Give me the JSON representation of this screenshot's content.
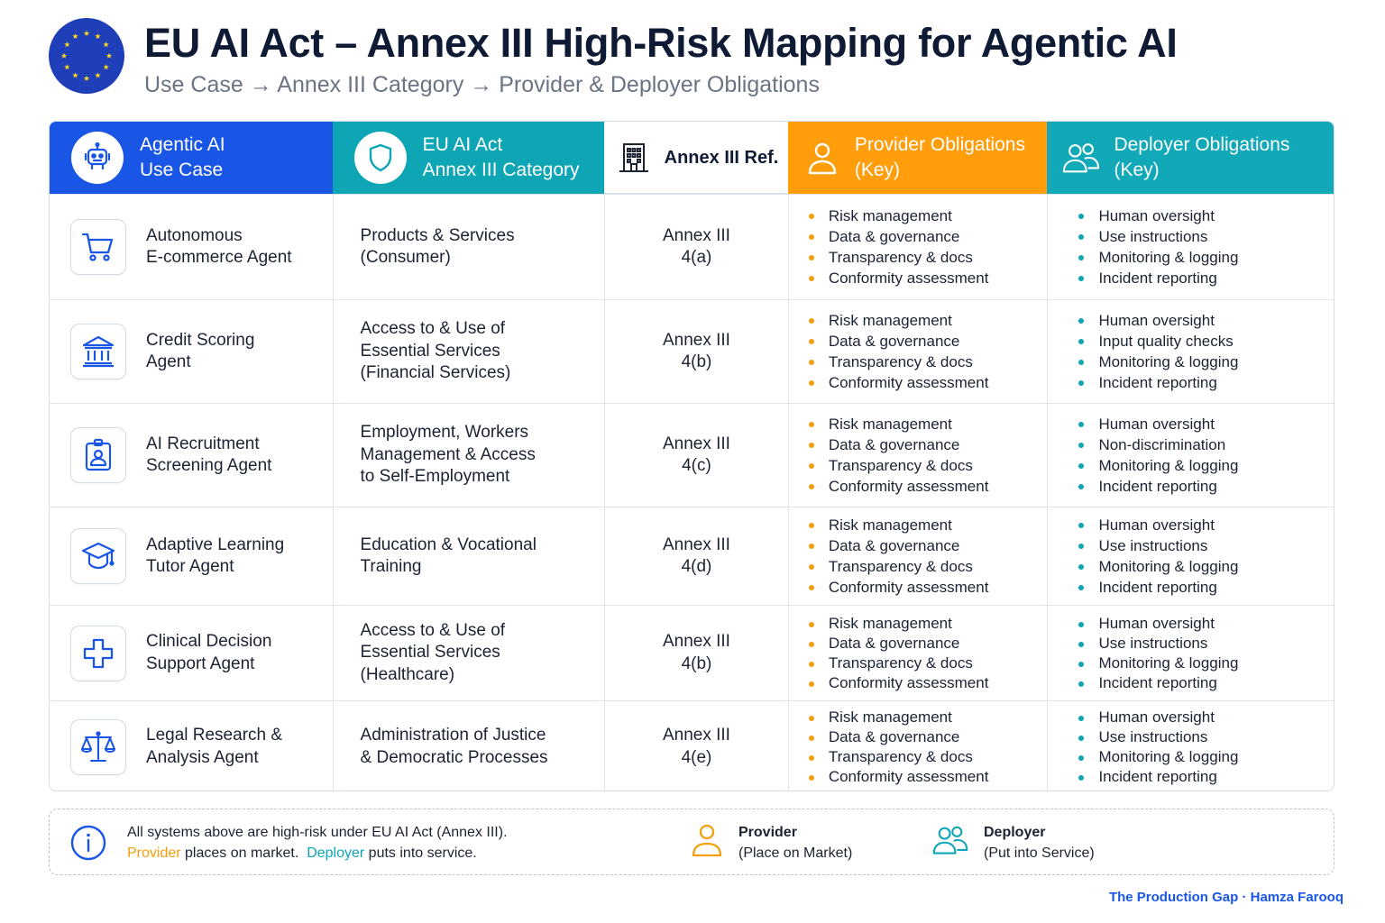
{
  "header": {
    "title": "EU AI Act – Annex III High-Risk Mapping for Agentic AI",
    "subtitle": "Use Case → Annex III Category → Provider & Deployer Obligations"
  },
  "columns": {
    "use_case": [
      "Agentic AI",
      "Use Case"
    ],
    "category": [
      "EU AI Act",
      "Annex III Category"
    ],
    "ref": "Annex III Ref.",
    "provider": [
      "Provider Obligations",
      "(Key)"
    ],
    "deployer": [
      "Deployer Obligations",
      "(Key)"
    ]
  },
  "rows": [
    {
      "icon": "cart-icon",
      "use_case": [
        "Autonomous",
        "E-commerce Agent"
      ],
      "category": [
        "Products & Services",
        "(Consumer)"
      ],
      "ref": [
        "Annex III",
        "4(a)"
      ],
      "provider": [
        "Risk management",
        "Data & governance",
        "Transparency & docs",
        "Conformity assessment"
      ],
      "deployer": [
        "Human oversight",
        "Use instructions",
        "Monitoring & logging",
        "Incident reporting"
      ]
    },
    {
      "icon": "bank-icon",
      "use_case": [
        "Credit Scoring",
        "Agent"
      ],
      "category": [
        "Access to & Use of",
        "Essential Services",
        "(Financial Services)"
      ],
      "ref": [
        "Annex III",
        "4(b)"
      ],
      "provider": [
        "Risk management",
        "Data & governance",
        "Transparency & docs",
        "Conformity assessment"
      ],
      "deployer": [
        "Human oversight",
        "Input quality checks",
        "Monitoring & logging",
        "Incident reporting"
      ]
    },
    {
      "icon": "id-badge-icon",
      "use_case": [
        "AI Recruitment",
        "Screening Agent"
      ],
      "category": [
        "Employment, Workers",
        "Management & Access",
        "to Self-Employment"
      ],
      "ref": [
        "Annex III",
        "4(c)"
      ],
      "provider": [
        "Risk management",
        "Data & governance",
        "Transparency & docs",
        "Conformity assessment"
      ],
      "deployer": [
        "Human oversight",
        "Non-discrimination",
        "Monitoring & logging",
        "Incident reporting"
      ]
    },
    {
      "icon": "graduation-cap-icon",
      "use_case": [
        "Adaptive Learning",
        "Tutor Agent"
      ],
      "category": [
        "Education & Vocational",
        "Training"
      ],
      "ref": [
        "Annex III",
        "4(d)"
      ],
      "provider": [
        "Risk management",
        "Data & governance",
        "Transparency & docs",
        "Conformity assessment"
      ],
      "deployer": [
        "Human oversight",
        "Use instructions",
        "Monitoring & logging",
        "Incident reporting"
      ]
    },
    {
      "icon": "medical-cross-icon",
      "use_case": [
        "Clinical Decision",
        "Support Agent"
      ],
      "category": [
        "Access to & Use of",
        "Essential Services",
        "(Healthcare)"
      ],
      "ref": [
        "Annex III",
        "4(b)"
      ],
      "provider": [
        "Risk management",
        "Data & governance",
        "Transparency & docs",
        "Conformity assessment"
      ],
      "deployer": [
        "Human oversight",
        "Use instructions",
        "Monitoring & logging",
        "Incident reporting"
      ]
    },
    {
      "icon": "scales-icon",
      "use_case": [
        "Legal Research &",
        "Analysis Agent"
      ],
      "category": [
        "Administration of Justice",
        "& Democratic Processes"
      ],
      "ref": [
        "Annex III",
        "4(e)"
      ],
      "provider": [
        "Risk management",
        "Data & governance",
        "Transparency & docs",
        "Conformity assessment"
      ],
      "deployer": [
        "Human oversight",
        "Use instructions",
        "Monitoring & logging",
        "Incident reporting"
      ]
    }
  ],
  "footer": {
    "note_line1": "All systems above are high-risk under EU AI Act (Annex III).",
    "note_provider_word": "Provider",
    "note_provider_rest": " places on market.",
    "note_deployer_word": "Deployer",
    "note_deployer_rest": " puts into service.",
    "legend_provider_name": "Provider",
    "legend_provider_desc": "(Place on Market)",
    "legend_deployer_name": "Deployer",
    "legend_deployer_desc": "(Put into Service)",
    "credit": "The Production Gap · Hamza Farooq"
  },
  "colors": {
    "blue": "#1a56e6",
    "teal": "#0ea5b5",
    "orange": "#ff9d0a",
    "eu_blue": "#1f3fb8",
    "eu_star": "#ffd617"
  }
}
